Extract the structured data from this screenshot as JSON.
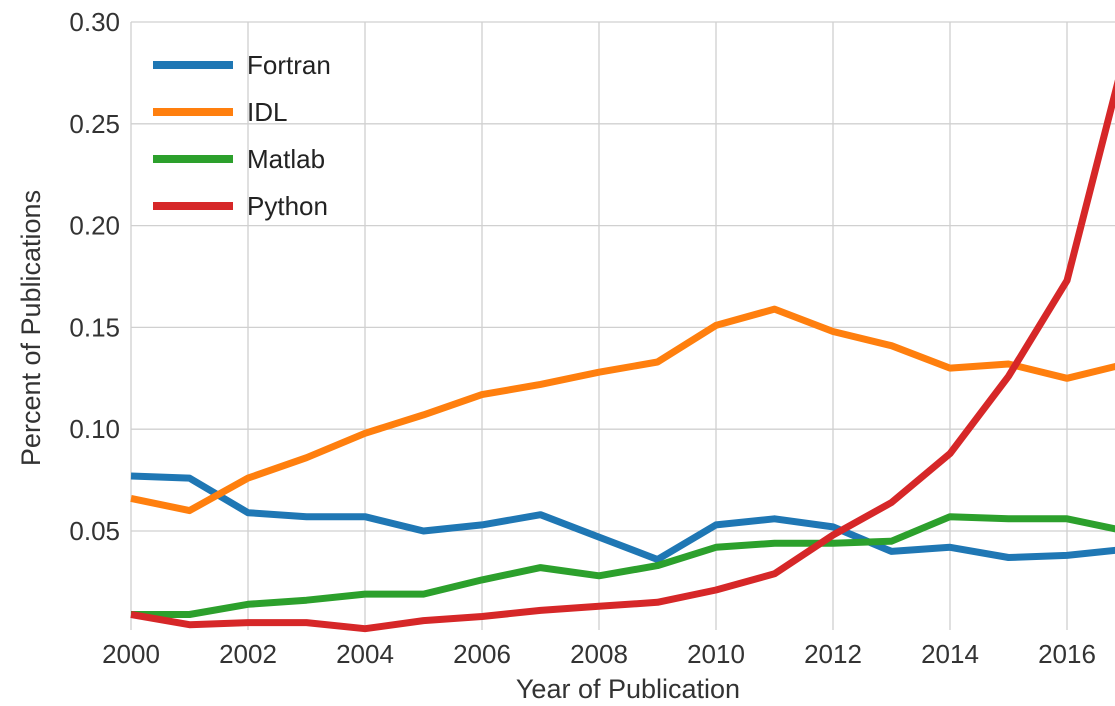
{
  "chart_data": {
    "type": "line",
    "xlabel": "Year of Publication",
    "ylabel": "Percent of Publications",
    "xlim": [
      2000,
      2017
    ],
    "ylim": [
      0.0025,
      0.3
    ],
    "x_ticks": [
      "2000",
      "2002",
      "2004",
      "2006",
      "2008",
      "2010",
      "2012",
      "2014",
      "2016"
    ],
    "y_ticks": [
      "0.05",
      "0.10",
      "0.15",
      "0.20",
      "0.25",
      "0.30"
    ],
    "grid": true,
    "legend_position": "top-left",
    "x": [
      2000,
      2001,
      2002,
      2003,
      2004,
      2005,
      2006,
      2007,
      2008,
      2009,
      2010,
      2011,
      2012,
      2013,
      2014,
      2015,
      2016,
      2017
    ],
    "series": [
      {
        "name": "Fortran",
        "color": "#1f77b4",
        "values": [
          0.077,
          0.076,
          0.059,
          0.057,
          0.057,
          0.05,
          0.053,
          0.058,
          0.047,
          0.036,
          0.053,
          0.056,
          0.052,
          0.04,
          0.042,
          0.037,
          0.038,
          0.041
        ]
      },
      {
        "name": "IDL",
        "color": "#ff7f0e",
        "values": [
          0.066,
          0.06,
          0.076,
          0.086,
          0.098,
          0.107,
          0.117,
          0.122,
          0.128,
          0.133,
          0.151,
          0.159,
          0.148,
          0.141,
          0.13,
          0.132,
          0.125,
          0.132
        ]
      },
      {
        "name": "Matlab",
        "color": "#2ca02c",
        "values": [
          0.009,
          0.009,
          0.014,
          0.016,
          0.019,
          0.019,
          0.026,
          0.032,
          0.028,
          0.033,
          0.042,
          0.044,
          0.044,
          0.045,
          0.057,
          0.056,
          0.056,
          0.05
        ]
      },
      {
        "name": "Python",
        "color": "#d62728",
        "values": [
          0.009,
          0.004,
          0.005,
          0.005,
          0.002,
          0.006,
          0.008,
          0.011,
          0.013,
          0.015,
          0.021,
          0.029,
          0.048,
          0.064,
          0.088,
          0.126,
          0.173,
          0.285
        ]
      }
    ]
  }
}
